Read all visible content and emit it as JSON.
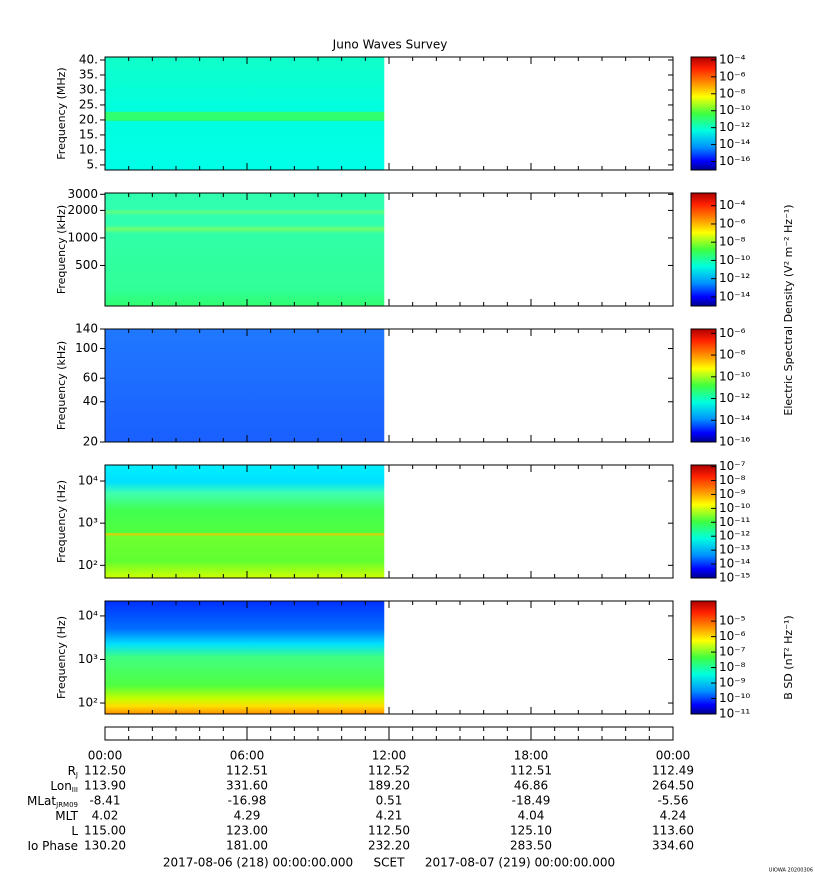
{
  "title": "Juno Waves Survey",
  "chart_data": [
    {
      "type": "spectrogram",
      "ylabel": "Frequency (MHz)",
      "yscale": "linear",
      "ylim": [
        3.3,
        41
      ],
      "yticks": [
        {
          "value": 5,
          "label": "5."
        },
        {
          "value": 10,
          "label": "10."
        },
        {
          "value": 15,
          "label": "15."
        },
        {
          "value": 20,
          "label": "20."
        },
        {
          "value": 25,
          "label": "25."
        },
        {
          "value": 30,
          "label": "30."
        },
        {
          "value": 35,
          "label": "35."
        },
        {
          "value": 40,
          "label": "40."
        }
      ],
      "coverage": [
        0,
        11.8
      ],
      "clim": [
        1e-17,
        0.00022
      ],
      "cticks": [
        {
          "value": 0.0001,
          "label": "10⁻⁴"
        },
        {
          "value": 1e-06,
          "label": "10⁻⁶"
        },
        {
          "value": 1e-08,
          "label": "10⁻⁸"
        },
        {
          "value": 1e-10,
          "label": "10⁻¹⁰"
        },
        {
          "value": 1e-12,
          "label": "10⁻¹²"
        },
        {
          "value": 1e-14,
          "label": "10⁻¹⁴"
        },
        {
          "value": 1e-16,
          "label": "10⁻¹⁶"
        }
      ]
    },
    {
      "type": "spectrogram",
      "ylabel": "Frequency (kHz)",
      "yscale": "log",
      "ylim": [
        180,
        3100
      ],
      "yticks": [
        500,
        1000,
        2000,
        3000
      ],
      "coverage": [
        0,
        11.8
      ],
      "clim": [
        1e-15,
        0.0025
      ],
      "cticks": [
        {
          "value": 0.0001,
          "label": "10⁻⁴"
        },
        {
          "value": 1e-06,
          "label": "10⁻⁶"
        },
        {
          "value": 1e-08,
          "label": "10⁻⁸"
        },
        {
          "value": 1e-10,
          "label": "10⁻¹⁰"
        },
        {
          "value": 1e-12,
          "label": "10⁻¹²"
        },
        {
          "value": 1e-14,
          "label": "10⁻¹⁴"
        }
      ]
    },
    {
      "type": "spectrogram",
      "ylabel": "Frequency (kHz)",
      "yscale": "log",
      "ylim": [
        20,
        140
      ],
      "yticks": [
        20,
        40,
        60,
        100,
        140
      ],
      "coverage": [
        0,
        11.8
      ],
      "clim": [
        1e-16,
        2.5e-06
      ],
      "cticks": [
        {
          "value": 1e-06,
          "label": "10⁻⁶"
        },
        {
          "value": 1e-08,
          "label": "10⁻⁸"
        },
        {
          "value": 1e-10,
          "label": "10⁻¹⁰"
        },
        {
          "value": 1e-12,
          "label": "10⁻¹²"
        },
        {
          "value": 1e-14,
          "label": "10⁻¹⁴"
        },
        {
          "value": 1e-16,
          "label": "10⁻¹⁶"
        }
      ]
    },
    {
      "type": "spectrogram",
      "ylabel": "Frequency (Hz)",
      "yscale": "log",
      "ylim": [
        50,
        24000
      ],
      "yticks": [
        {
          "value": 100,
          "label": "10²"
        },
        {
          "value": 1000,
          "label": "10³"
        },
        {
          "value": 10000,
          "label": "10⁴"
        }
      ],
      "coverage": [
        0,
        11.8
      ],
      "clim": [
        1e-15,
        1.3e-07
      ],
      "cticks": [
        {
          "value": 1e-07,
          "label": "10⁻⁷"
        },
        {
          "value": 1e-08,
          "label": "10⁻⁸"
        },
        {
          "value": 1e-09,
          "label": "10⁻⁹"
        },
        {
          "value": 1e-10,
          "label": "10⁻¹⁰"
        },
        {
          "value": 1e-11,
          "label": "10⁻¹¹"
        },
        {
          "value": 1e-12,
          "label": "10⁻¹²"
        },
        {
          "value": 1e-13,
          "label": "10⁻¹³"
        },
        {
          "value": 1e-14,
          "label": "10⁻¹⁴"
        },
        {
          "value": 1e-15,
          "label": "10⁻¹⁵"
        }
      ]
    },
    {
      "type": "spectrogram",
      "ylabel": "Frequency (Hz)",
      "yscale": "log",
      "ylim": [
        56,
        22000
      ],
      "yticks": [
        {
          "value": 100,
          "label": "10²"
        },
        {
          "value": 1000,
          "label": "10³"
        },
        {
          "value": 10000,
          "label": "10⁴"
        }
      ],
      "coverage": [
        0,
        11.8
      ],
      "clim": [
        1e-11,
        0.0002
      ],
      "cticks": [
        {
          "value": 1e-05,
          "label": "10⁻⁵"
        },
        {
          "value": 1e-06,
          "label": "10⁻⁶"
        },
        {
          "value": 1e-07,
          "label": "10⁻⁷"
        },
        {
          "value": 1e-08,
          "label": "10⁻⁸"
        },
        {
          "value": 1e-09,
          "label": "10⁻⁹"
        },
        {
          "value": 1e-10,
          "label": "10⁻¹⁰"
        },
        {
          "value": 1e-11,
          "label": "10⁻¹¹"
        }
      ],
      "colorbar_label": "B SD (nT² Hz⁻¹)"
    }
  ],
  "e_colorbar_label": "Electric Spectral Density (V² m⁻² Hz⁻¹)",
  "time_axis": {
    "xlim": [
      0,
      24
    ],
    "xticks": [
      {
        "value": 0,
        "label": "00:00"
      },
      {
        "value": 6,
        "label": "06:00"
      },
      {
        "value": 12,
        "label": "12:00"
      },
      {
        "value": 18,
        "label": "18:00"
      },
      {
        "value": 24,
        "label": "00:00"
      }
    ],
    "minor_ticks": [
      1,
      2,
      3,
      4,
      5,
      7,
      8,
      9,
      10,
      11,
      13,
      14,
      15,
      16,
      17,
      19,
      20,
      21,
      22,
      23
    ]
  },
  "ephemeris": [
    {
      "label": "R",
      "sub": "J",
      "values": [
        "112.50",
        "112.51",
        "112.52",
        "112.51",
        "112.49"
      ]
    },
    {
      "label": "Lon",
      "sub": "III",
      "values": [
        "113.90",
        "331.60",
        "189.20",
        "46.86",
        "264.50"
      ]
    },
    {
      "label": "MLat",
      "sub": "JRM09",
      "values": [
        "-8.41",
        "-16.98",
        "0.51",
        "-18.49",
        "-5.56"
      ]
    },
    {
      "label": "MLT",
      "values": [
        "4.02",
        "4.29",
        "4.21",
        "4.04",
        "4.24"
      ]
    },
    {
      "label": "L",
      "values": [
        "115.00",
        "123.00",
        "112.50",
        "125.10",
        "113.60"
      ]
    },
    {
      "label": "Io Phase",
      "values": [
        "130.20",
        "181.00",
        "232.20",
        "283.50",
        "334.60"
      ]
    }
  ],
  "footer": {
    "start": "2017-08-06 (218) 00:00:00.000",
    "scet": "SCET",
    "end": "2017-08-07 (219) 00:00:00.000",
    "credit": "UIOWA 20200306"
  }
}
